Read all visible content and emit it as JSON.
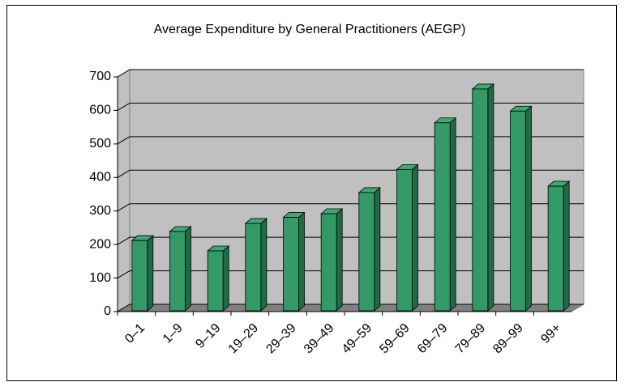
{
  "chart_data": {
    "type": "bar3d",
    "title": "Average Expenditure by General Practitioners (AEGP)",
    "categories": [
      "0–1",
      "1–9",
      "9–19",
      "19–29",
      "29–39",
      "39–49",
      "49–59",
      "59–69",
      "69–79",
      "79–89",
      "89–99",
      "99+"
    ],
    "values": [
      212,
      239,
      181,
      263,
      281,
      292,
      355,
      424,
      563,
      664,
      598,
      374
    ],
    "color": "#339966",
    "ylim": [
      0,
      700
    ],
    "yticks": [
      0,
      100,
      200,
      300,
      400,
      500,
      600,
      700
    ],
    "grid": true
  }
}
